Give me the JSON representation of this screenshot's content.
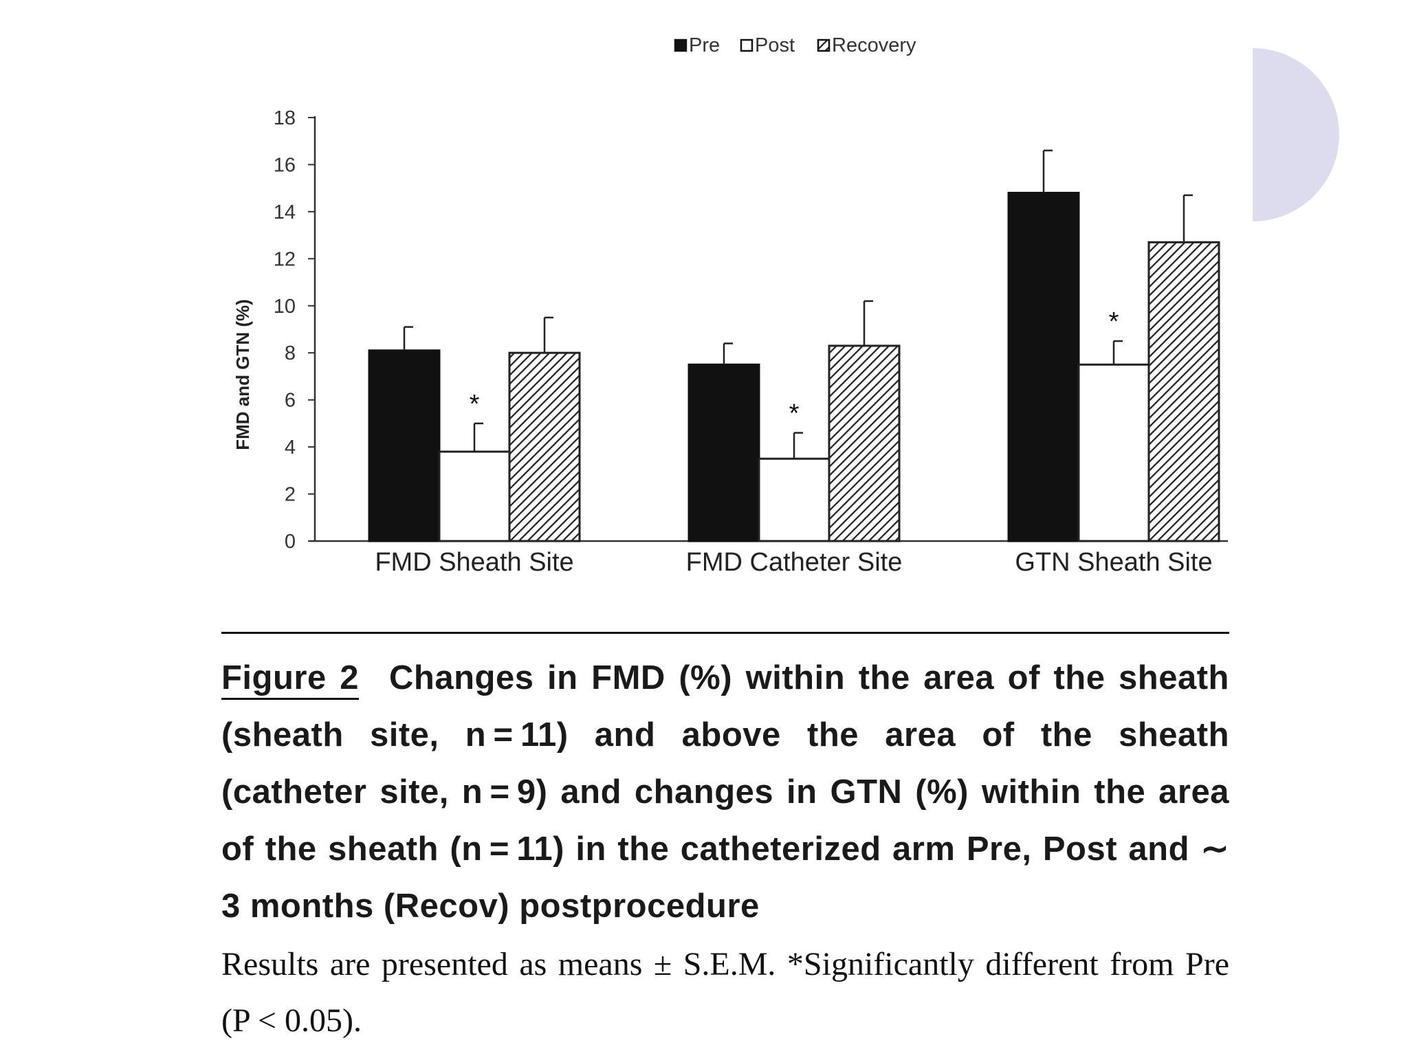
{
  "chart_data": {
    "type": "bar",
    "title": "",
    "xlabel": "",
    "ylabel": "FMD and GTN (%)",
    "ylim": [
      0,
      18
    ],
    "yticks": [
      0,
      2,
      4,
      6,
      8,
      10,
      12,
      14,
      16,
      18
    ],
    "grid": false,
    "legend_position": "top-center",
    "categories": [
      "FMD Sheath Site",
      "FMD Catheter Site",
      "GTN Sheath Site"
    ],
    "series": [
      {
        "name": "Pre",
        "values": [
          8.1,
          7.5,
          14.8
        ],
        "errors": [
          1.0,
          0.9,
          1.8
        ],
        "fill": "solid-black"
      },
      {
        "name": "Post",
        "values": [
          3.8,
          3.5,
          7.5
        ],
        "errors": [
          1.2,
          1.1,
          1.0
        ],
        "fill": "white"
      },
      {
        "name": "Recovery",
        "values": [
          8.0,
          8.3,
          12.7
        ],
        "errors": [
          1.5,
          1.9,
          2.0
        ],
        "fill": "hatched"
      }
    ],
    "significance_marker": "*",
    "significant_series": "Post"
  },
  "caption": {
    "figure_label": "Figure 2",
    "title_text": "Changes in FMD (%) within the area of the sheath (sheath site, n = 11) and above the area of the sheath (catheter site, n = 9) and changes in GTN (%) within the area of the sheath (n = 11) in the catheterized arm Pre, Post and ∼ 3 months (Recov) postprocedure",
    "note_text": "Results are presented as means ± S.E.M. *Significantly different from Pre (P < 0.05)."
  },
  "colors": {
    "decoration": "#dcdcee",
    "bar_dark": "#111111",
    "axis": "#333333"
  }
}
